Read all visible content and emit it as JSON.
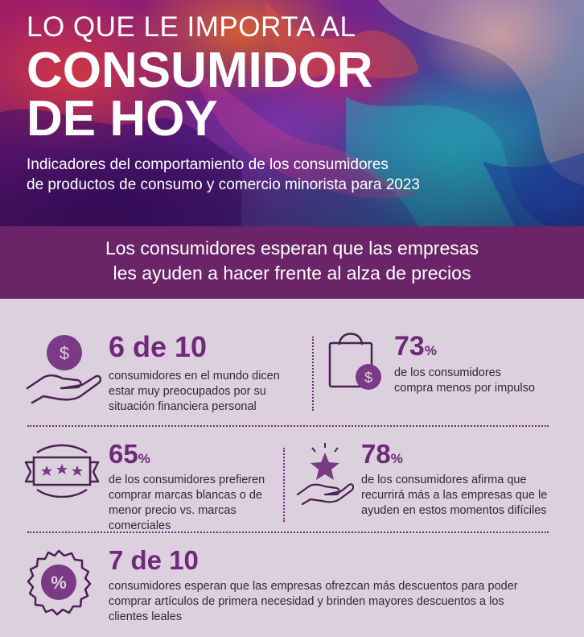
{
  "hero": {
    "kicker": "LO QUE LE IMPORTA AL",
    "headline_line1": "CONSUMIDOR",
    "headline_line2": "DE HOY",
    "subtitle_line1": "Indicadores del comportamiento de los consumidores",
    "subtitle_line2": "de productos de consumo y comercio minorista para 2023"
  },
  "banner": {
    "line1": "Los consumidores esperan que las empresas",
    "line2": "les ayuden a hacer frente al alza de precios"
  },
  "stats": [
    {
      "figure": "6 de 10",
      "unit": "",
      "icon": "hand-coin-icon",
      "lines": [
        "consumidores en el mundo dicen",
        "estar muy preocupados por su",
        "situación financiera personal"
      ]
    },
    {
      "figure": "73",
      "unit": "%",
      "icon": "shopping-bag-icon",
      "lines": [
        "de los consumidores",
        "compra menos por impulso"
      ]
    },
    {
      "figure": "65",
      "unit": "%",
      "icon": "rating-banner-icon",
      "lines": [
        "de los consumidores prefieren",
        "comprar marcas blancas o de",
        "menor precio vs. marcas",
        "comerciales"
      ]
    },
    {
      "figure": "78",
      "unit": "%",
      "icon": "hand-star-icon",
      "lines": [
        "de los consumidores afirma que",
        "recurrirá más a las empresas que le",
        "ayuden en estos momentos difíciles"
      ]
    },
    {
      "figure": "7 de 10",
      "unit": "",
      "icon": "discount-badge-icon",
      "lines": [
        "consumidores esperan que las empresas ofrezcan más descuentos para poder",
        "comprar artículos de primera necesidad y brinden mayores descuentos a los",
        "clientes leales"
      ]
    }
  ],
  "colors": {
    "accent": "#6e2a78",
    "banner": "#6b2468",
    "background": "#ddd0de",
    "icon_fill": "#7a3a86"
  }
}
